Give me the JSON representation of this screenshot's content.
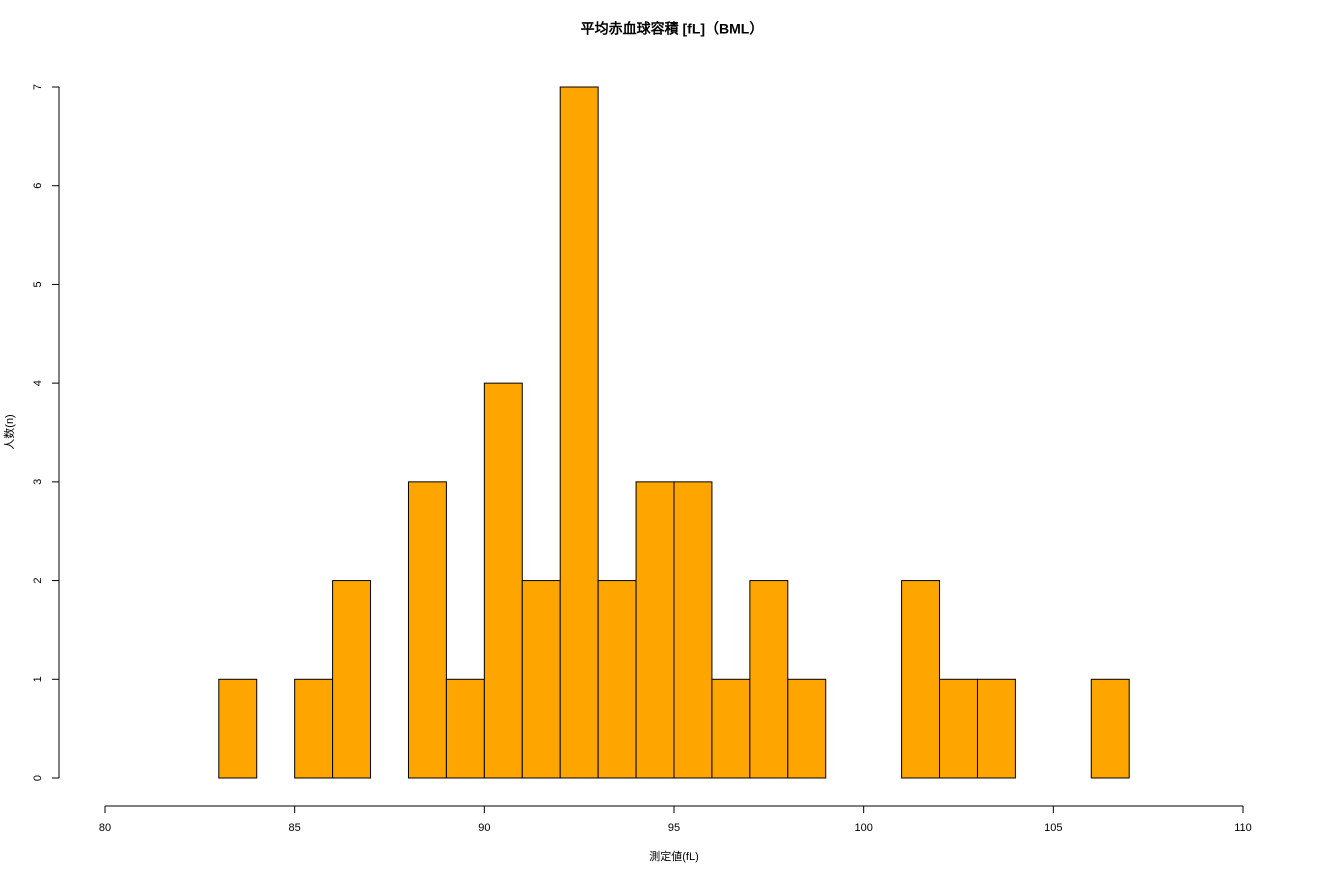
{
  "chart_data": {
    "type": "histogram",
    "title": "平均赤血球容積 [fL]（BML）",
    "x_label": "測定値(fL)",
    "y_label": "人数(n)",
    "bins": [
      83,
      84,
      85,
      86,
      87,
      88,
      89,
      90,
      91,
      92,
      93,
      94,
      95,
      96,
      97,
      98,
      99,
      100,
      101,
      102,
      103,
      104,
      105,
      106,
      107
    ],
    "values": [
      1,
      0,
      1,
      2,
      0,
      3,
      1,
      4,
      2,
      7,
      2,
      3,
      3,
      1,
      2,
      1,
      0,
      0,
      2,
      1,
      1,
      0,
      0,
      1
    ],
    "color": "#ffa500",
    "xlim": [
      80,
      110
    ],
    "xticks": [
      80,
      85,
      90,
      95,
      100,
      105,
      110
    ],
    "ylim": [
      0,
      7
    ],
    "yticks": [
      0,
      1,
      2,
      3,
      4,
      5,
      6,
      7
    ]
  }
}
